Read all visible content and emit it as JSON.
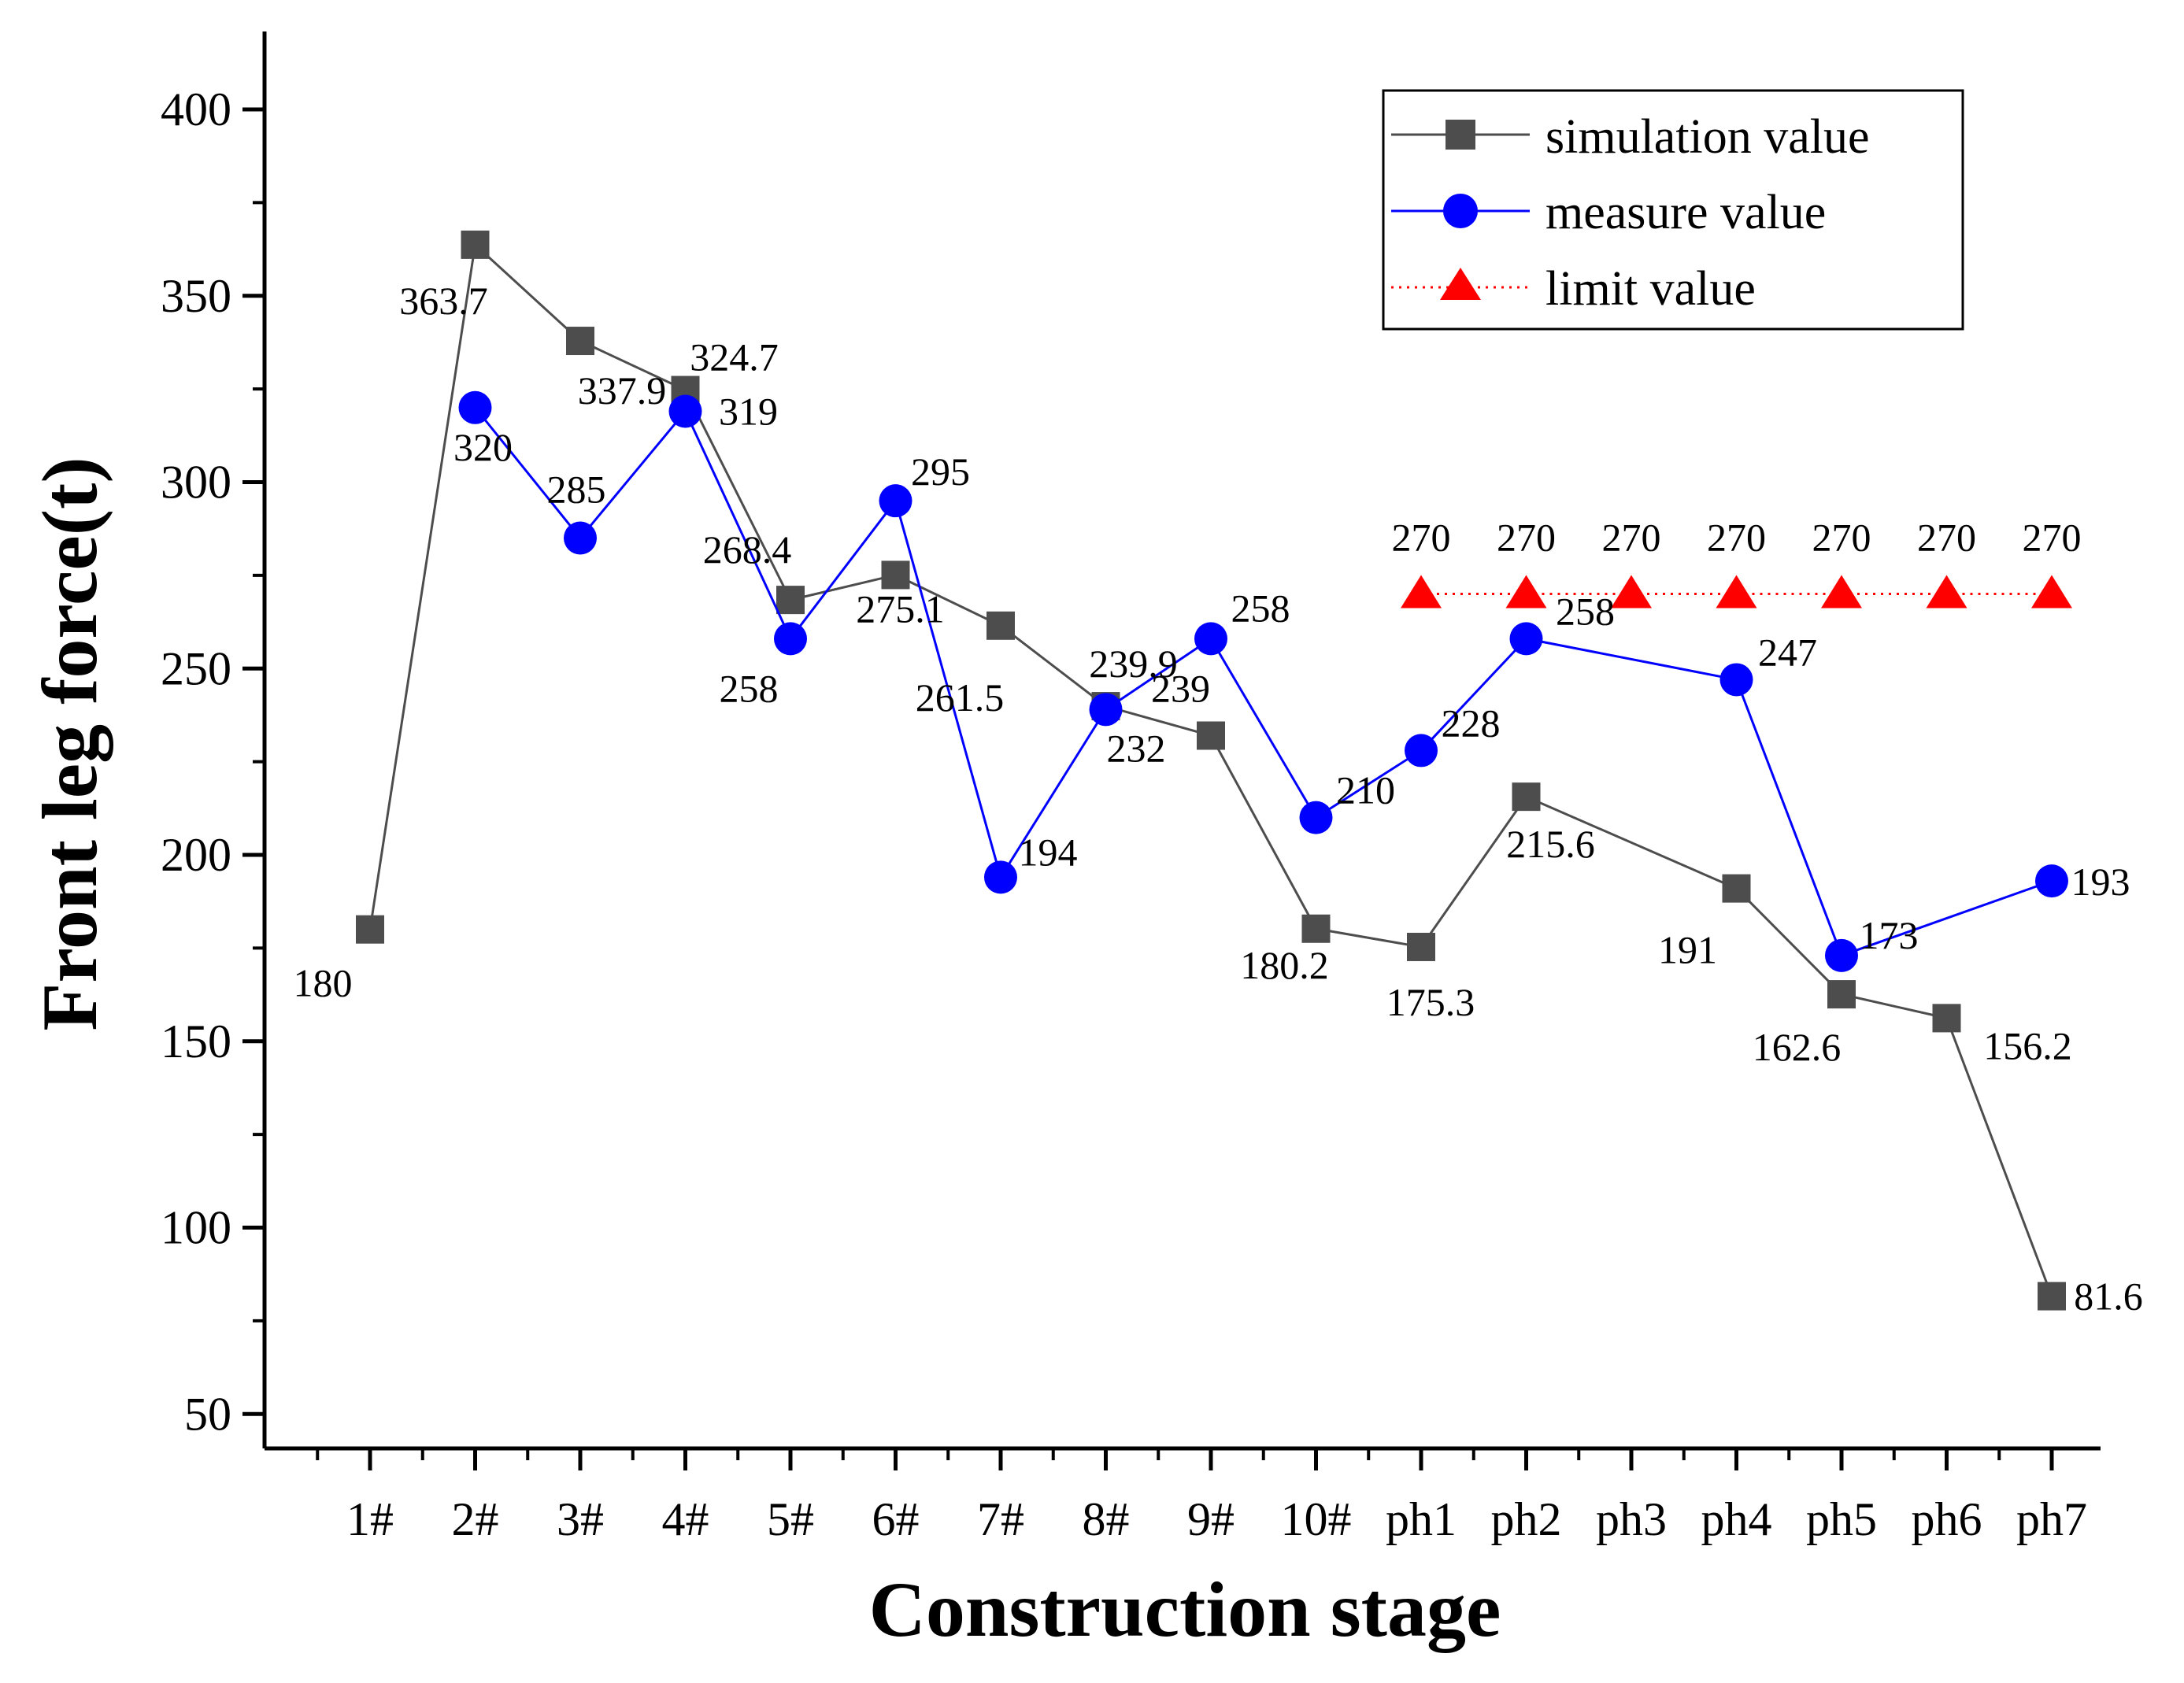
{
  "chart_data": {
    "type": "line",
    "title": "",
    "xlabel": "Construction stage",
    "ylabel": "Front leg force(t)",
    "ylim": [
      30,
      420
    ],
    "yticks": [
      50,
      100,
      150,
      200,
      250,
      300,
      350,
      400
    ],
    "categories": [
      "1#",
      "2#",
      "3#",
      "4#",
      "5#",
      "6#",
      "7#",
      "8#",
      "9#",
      "10#",
      "ph1",
      "ph2",
      "ph3",
      "ph4",
      "ph5",
      "ph6",
      "ph7"
    ],
    "legend_position": "top-right",
    "series": [
      {
        "name": "simulation value",
        "color": "#4d4d4d",
        "marker": "square",
        "line": "solid",
        "values": [
          180,
          363.7,
          337.9,
          324.7,
          268.4,
          275.1,
          261.5,
          239.9,
          232,
          180.2,
          175.3,
          215.6,
          null,
          191,
          162.6,
          156.2,
          81.6
        ],
        "labels": [
          "180",
          "363.7",
          "337.9",
          "324.7",
          "268.4",
          "275.1",
          "261.5",
          "239.9",
          "232",
          "180.2",
          "175.3",
          "215.6",
          null,
          "191",
          "162.6",
          "156.2",
          "81.6"
        ]
      },
      {
        "name": "measure value",
        "color": "#0000ff",
        "marker": "circle",
        "line": "solid",
        "values": [
          null,
          320,
          285,
          319,
          258,
          295,
          194,
          239,
          258,
          210,
          228,
          258,
          null,
          247,
          173,
          null,
          193
        ],
        "labels": [
          null,
          "320",
          "285",
          "319",
          "258",
          "295",
          "194",
          "239",
          "258",
          "210",
          "228",
          "258",
          null,
          "247",
          "173",
          null,
          "193"
        ]
      },
      {
        "name": "limit value",
        "color": "#ff0000",
        "marker": "triangle",
        "line": "dotted",
        "values": [
          null,
          null,
          null,
          null,
          null,
          null,
          null,
          null,
          null,
          null,
          270,
          270,
          270,
          270,
          270,
          270,
          270
        ],
        "labels": [
          null,
          null,
          null,
          null,
          null,
          null,
          null,
          null,
          null,
          null,
          "270",
          "270",
          "270",
          "270",
          "270",
          "270",
          "270"
        ]
      }
    ]
  }
}
